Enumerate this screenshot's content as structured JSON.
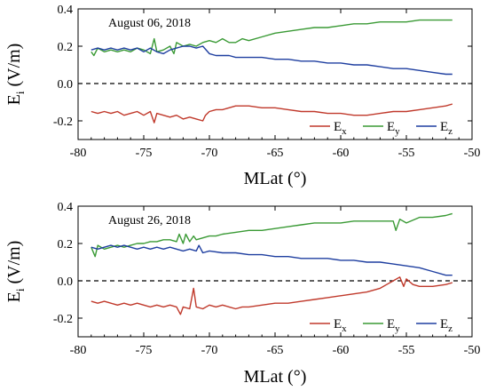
{
  "chart_data": [
    {
      "type": "line",
      "title": "August 06, 2018",
      "xlabel": "MLat (°)",
      "ylabel_main": "E",
      "ylabel_sub": "i",
      "ylabel_unit": " (V/m)",
      "xlim": [
        -80,
        -50
      ],
      "ylim": [
        -0.3,
        0.4
      ],
      "x_ticks": [
        -80,
        -75,
        -70,
        -65,
        -60,
        -55,
        -50
      ],
      "x_tick_labels": [
        "-80",
        "-75",
        "-70",
        "-65",
        "-60",
        "-55",
        "-50"
      ],
      "y_ticks": [
        -0.2,
        0.0,
        0.2,
        0.4
      ],
      "y_tick_labels": [
        "-0.2",
        "0.0",
        "0.2",
        "0.4"
      ],
      "zero_line": true,
      "legend_placement": "bottom-right",
      "series": [
        {
          "name_main": "E",
          "name_sub": "x",
          "color": "#c0392b",
          "x": [
            -79,
            -78.5,
            -78,
            -77.5,
            -77,
            -76.5,
            -76,
            -75.5,
            -75,
            -74.5,
            -74.2,
            -74,
            -73.5,
            -73,
            -72.5,
            -72,
            -71.5,
            -71,
            -70.5,
            -70.3,
            -70,
            -69.5,
            -69,
            -68.5,
            -68,
            -67,
            -66,
            -65,
            -64,
            -63,
            -62,
            -61,
            -60,
            -59,
            -58,
            -57,
            -56,
            -55,
            -54,
            -53,
            -52,
            -51.5
          ],
          "y": [
            -0.15,
            -0.16,
            -0.15,
            -0.16,
            -0.15,
            -0.17,
            -0.16,
            -0.15,
            -0.17,
            -0.15,
            -0.21,
            -0.16,
            -0.17,
            -0.18,
            -0.17,
            -0.19,
            -0.18,
            -0.19,
            -0.2,
            -0.17,
            -0.15,
            -0.14,
            -0.14,
            -0.13,
            -0.12,
            -0.12,
            -0.13,
            -0.13,
            -0.14,
            -0.15,
            -0.15,
            -0.16,
            -0.16,
            -0.17,
            -0.17,
            -0.16,
            -0.15,
            -0.15,
            -0.14,
            -0.13,
            -0.12,
            -0.11
          ]
        },
        {
          "name_main": "E",
          "name_sub": "y",
          "color": "#3a9a35",
          "x": [
            -79,
            -78.8,
            -78.5,
            -78,
            -77.5,
            -77,
            -76.5,
            -76,
            -75.5,
            -75,
            -74.5,
            -74.2,
            -74,
            -73.5,
            -73,
            -72.7,
            -72.5,
            -72,
            -71.5,
            -71,
            -70.5,
            -70,
            -69.5,
            -69,
            -68.5,
            -68,
            -67.5,
            -67,
            -66,
            -65,
            -64,
            -63,
            -62,
            -61,
            -60,
            -59,
            -58,
            -57,
            -56,
            -55,
            -54,
            -53,
            -52,
            -51.5
          ],
          "y": [
            0.17,
            0.15,
            0.19,
            0.17,
            0.18,
            0.17,
            0.18,
            0.17,
            0.19,
            0.18,
            0.16,
            0.24,
            0.17,
            0.18,
            0.2,
            0.16,
            0.22,
            0.2,
            0.21,
            0.2,
            0.22,
            0.23,
            0.22,
            0.24,
            0.22,
            0.22,
            0.24,
            0.23,
            0.25,
            0.27,
            0.28,
            0.29,
            0.3,
            0.3,
            0.31,
            0.32,
            0.32,
            0.33,
            0.33,
            0.33,
            0.34,
            0.34,
            0.34,
            0.34
          ]
        },
        {
          "name_main": "E",
          "name_sub": "z",
          "color": "#1f3fa0",
          "x": [
            -79,
            -78.5,
            -78,
            -77.5,
            -77,
            -76.5,
            -76,
            -75.5,
            -75,
            -74.5,
            -74,
            -73.5,
            -73,
            -72.5,
            -72,
            -71.5,
            -71,
            -70.5,
            -70,
            -69.5,
            -69,
            -68.5,
            -68,
            -67,
            -66,
            -65,
            -64,
            -63,
            -62,
            -61,
            -60,
            -59,
            -58,
            -57,
            -56,
            -55,
            -54,
            -53,
            -52,
            -51.5
          ],
          "y": [
            0.18,
            0.19,
            0.18,
            0.19,
            0.18,
            0.19,
            0.18,
            0.19,
            0.17,
            0.19,
            0.17,
            0.16,
            0.18,
            0.19,
            0.2,
            0.2,
            0.19,
            0.2,
            0.16,
            0.15,
            0.15,
            0.15,
            0.14,
            0.14,
            0.14,
            0.13,
            0.13,
            0.12,
            0.12,
            0.11,
            0.11,
            0.1,
            0.1,
            0.09,
            0.08,
            0.08,
            0.07,
            0.06,
            0.05,
            0.05
          ]
        }
      ]
    },
    {
      "type": "line",
      "title": "August 26,  2018",
      "xlabel": "MLat (°)",
      "ylabel_main": "E",
      "ylabel_sub": "i",
      "ylabel_unit": " (V/m)",
      "xlim": [
        -80,
        -50
      ],
      "ylim": [
        -0.3,
        0.4
      ],
      "x_ticks": [
        -80,
        -75,
        -70,
        -65,
        -60,
        -55,
        -50
      ],
      "x_tick_labels": [
        "-80",
        "-75",
        "-70",
        "-65",
        "-60",
        "-55",
        "-50"
      ],
      "y_ticks": [
        -0.2,
        0.0,
        0.2,
        0.4
      ],
      "y_tick_labels": [
        "-0.2",
        "0.0",
        "0.2",
        "0.4"
      ],
      "zero_line": true,
      "legend_placement": "bottom-right",
      "series": [
        {
          "name_main": "E",
          "name_sub": "x",
          "color": "#c0392b",
          "x": [
            -79,
            -78.5,
            -78,
            -77.5,
            -77,
            -76.5,
            -76,
            -75.5,
            -75,
            -74.5,
            -74,
            -73.5,
            -73,
            -72.5,
            -72.2,
            -72,
            -71.5,
            -71.2,
            -71,
            -70.5,
            -70,
            -69.5,
            -69,
            -68.5,
            -68,
            -67.5,
            -67,
            -66,
            -65,
            -64,
            -63,
            -62,
            -61,
            -60,
            -59,
            -58,
            -57,
            -56.5,
            -56,
            -55.5,
            -55.2,
            -55,
            -54.5,
            -54,
            -53,
            -52,
            -51.5
          ],
          "y": [
            -0.11,
            -0.12,
            -0.11,
            -0.12,
            -0.13,
            -0.12,
            -0.13,
            -0.12,
            -0.13,
            -0.14,
            -0.13,
            -0.14,
            -0.13,
            -0.14,
            -0.18,
            -0.14,
            -0.15,
            -0.04,
            -0.14,
            -0.15,
            -0.13,
            -0.14,
            -0.13,
            -0.14,
            -0.15,
            -0.14,
            -0.14,
            -0.13,
            -0.12,
            -0.12,
            -0.11,
            -0.1,
            -0.09,
            -0.08,
            -0.07,
            -0.06,
            -0.04,
            -0.02,
            0.0,
            0.02,
            -0.03,
            0.01,
            -0.02,
            -0.03,
            -0.03,
            -0.02,
            -0.01
          ]
        },
        {
          "name_main": "E",
          "name_sub": "y",
          "color": "#3a9a35",
          "x": [
            -79,
            -78.7,
            -78.5,
            -78,
            -77.5,
            -77,
            -76.5,
            -76,
            -75.5,
            -75,
            -74.5,
            -74,
            -73.5,
            -73,
            -72.5,
            -72.3,
            -72,
            -71.8,
            -71.5,
            -71.2,
            -71,
            -70.5,
            -70,
            -69.5,
            -69,
            -68,
            -67,
            -66,
            -65,
            -64,
            -63,
            -62,
            -61,
            -60,
            -59,
            -58,
            -57,
            -56,
            -55.8,
            -55.5,
            -55,
            -54,
            -53,
            -52,
            -51.5
          ],
          "y": [
            0.18,
            0.13,
            0.19,
            0.17,
            0.18,
            0.19,
            0.18,
            0.19,
            0.2,
            0.2,
            0.21,
            0.21,
            0.22,
            0.22,
            0.21,
            0.25,
            0.2,
            0.25,
            0.21,
            0.24,
            0.22,
            0.23,
            0.24,
            0.24,
            0.25,
            0.26,
            0.27,
            0.27,
            0.28,
            0.29,
            0.3,
            0.31,
            0.31,
            0.31,
            0.32,
            0.32,
            0.32,
            0.32,
            0.27,
            0.33,
            0.31,
            0.34,
            0.34,
            0.35,
            0.36
          ]
        },
        {
          "name_main": "E",
          "name_sub": "z",
          "color": "#1f3fa0",
          "x": [
            -79,
            -78.5,
            -78,
            -77.5,
            -77,
            -76.5,
            -76,
            -75.5,
            -75,
            -74.5,
            -74,
            -73.5,
            -73,
            -72.5,
            -72,
            -71.5,
            -71,
            -70.8,
            -70.5,
            -70,
            -69,
            -68,
            -67,
            -66,
            -65,
            -64,
            -63,
            -62,
            -61,
            -60,
            -59,
            -58,
            -57,
            -56,
            -55,
            -54,
            -53,
            -52,
            -51.5
          ],
          "y": [
            0.18,
            0.17,
            0.18,
            0.19,
            0.18,
            0.19,
            0.18,
            0.17,
            0.18,
            0.17,
            0.18,
            0.17,
            0.18,
            0.17,
            0.16,
            0.17,
            0.16,
            0.19,
            0.15,
            0.16,
            0.15,
            0.15,
            0.14,
            0.14,
            0.13,
            0.13,
            0.12,
            0.12,
            0.12,
            0.11,
            0.11,
            0.1,
            0.1,
            0.09,
            0.08,
            0.07,
            0.05,
            0.03,
            0.03
          ]
        }
      ]
    }
  ]
}
